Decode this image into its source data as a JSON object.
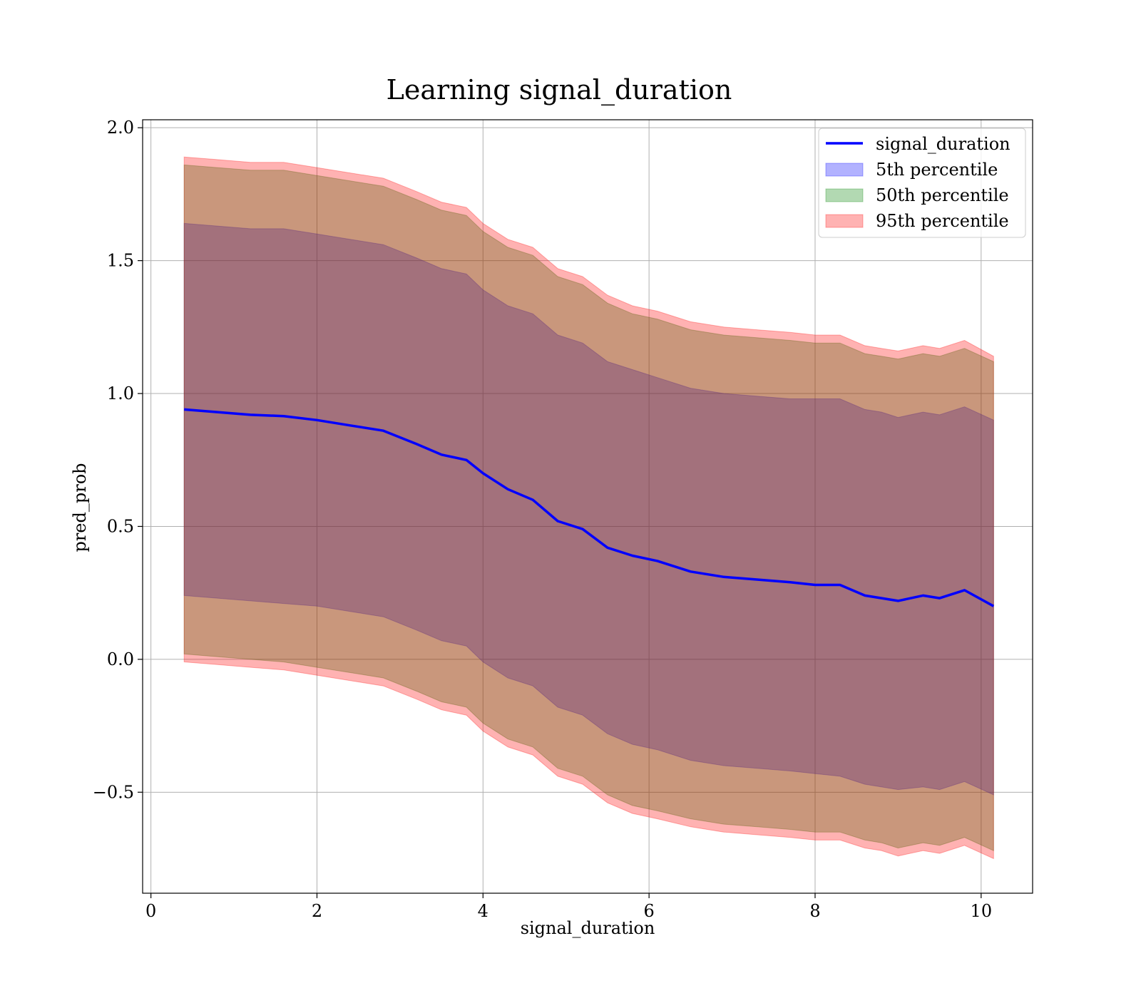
{
  "chart_data": {
    "type": "area",
    "title": "Learning signal_duration",
    "xlabel": "signal_duration",
    "ylabel": "pred_prob",
    "xlim": [
      -0.1,
      10.62
    ],
    "ylim": [
      -0.88,
      2.03
    ],
    "xticks": [
      0,
      2,
      4,
      6,
      8,
      10
    ],
    "yticks": [
      2.0,
      1.5,
      1.0,
      0.5,
      0.0,
      -0.5
    ],
    "ytick_labels": [
      "2.0",
      "1.5",
      "1.0",
      "0.5",
      "0.0",
      "−0.5"
    ],
    "grid": true,
    "legend_position": "top-right",
    "x": [
      0.4,
      0.8,
      1.2,
      1.6,
      2.0,
      2.4,
      2.8,
      3.2,
      3.5,
      3.8,
      4.0,
      4.3,
      4.6,
      4.9,
      5.2,
      5.5,
      5.8,
      6.1,
      6.5,
      6.9,
      7.3,
      7.7,
      8.0,
      8.3,
      8.6,
      8.8,
      9.0,
      9.3,
      9.5,
      9.8,
      10.15
    ],
    "series": [
      {
        "name": "signal_duration",
        "kind": "line",
        "color": "#0000ff",
        "values": [
          0.94,
          0.93,
          0.92,
          0.915,
          0.9,
          0.88,
          0.86,
          0.81,
          0.77,
          0.75,
          0.7,
          0.64,
          0.6,
          0.52,
          0.49,
          0.42,
          0.39,
          0.37,
          0.33,
          0.31,
          0.3,
          0.29,
          0.28,
          0.28,
          0.24,
          0.23,
          0.22,
          0.24,
          0.23,
          0.26,
          0.2
        ]
      },
      {
        "name": "5th percentile",
        "kind": "band",
        "color": "#0000ff",
        "lower": [
          0.24,
          0.23,
          0.22,
          0.21,
          0.2,
          0.18,
          0.16,
          0.11,
          0.07,
          0.05,
          -0.01,
          -0.07,
          -0.1,
          -0.18,
          -0.21,
          -0.28,
          -0.32,
          -0.34,
          -0.38,
          -0.4,
          -0.41,
          -0.42,
          -0.43,
          -0.44,
          -0.47,
          -0.48,
          -0.49,
          -0.48,
          -0.49,
          -0.46,
          -0.51
        ],
        "upper": [
          1.64,
          1.63,
          1.62,
          1.62,
          1.6,
          1.58,
          1.56,
          1.51,
          1.47,
          1.45,
          1.39,
          1.33,
          1.3,
          1.22,
          1.19,
          1.12,
          1.09,
          1.06,
          1.02,
          1.0,
          0.99,
          0.98,
          0.98,
          0.98,
          0.94,
          0.93,
          0.91,
          0.93,
          0.92,
          0.95,
          0.9
        ]
      },
      {
        "name": "50th percentile",
        "kind": "band",
        "color": "#008000",
        "lower": [
          0.02,
          0.01,
          0.0,
          -0.01,
          -0.03,
          -0.05,
          -0.07,
          -0.12,
          -0.16,
          -0.18,
          -0.24,
          -0.3,
          -0.33,
          -0.41,
          -0.44,
          -0.51,
          -0.55,
          -0.57,
          -0.6,
          -0.62,
          -0.63,
          -0.64,
          -0.65,
          -0.65,
          -0.68,
          -0.69,
          -0.71,
          -0.69,
          -0.7,
          -0.67,
          -0.72
        ],
        "upper": [
          1.86,
          1.85,
          1.84,
          1.84,
          1.82,
          1.8,
          1.78,
          1.73,
          1.69,
          1.67,
          1.61,
          1.55,
          1.52,
          1.44,
          1.41,
          1.34,
          1.3,
          1.28,
          1.24,
          1.22,
          1.21,
          1.2,
          1.19,
          1.19,
          1.15,
          1.14,
          1.13,
          1.15,
          1.14,
          1.17,
          1.12
        ]
      },
      {
        "name": "95th percentile",
        "kind": "band",
        "color": "#ff0000",
        "lower": [
          -0.01,
          -0.02,
          -0.03,
          -0.04,
          -0.06,
          -0.08,
          -0.1,
          -0.15,
          -0.19,
          -0.21,
          -0.27,
          -0.33,
          -0.36,
          -0.44,
          -0.47,
          -0.54,
          -0.58,
          -0.6,
          -0.63,
          -0.65,
          -0.66,
          -0.67,
          -0.68,
          -0.68,
          -0.71,
          -0.72,
          -0.74,
          -0.72,
          -0.73,
          -0.7,
          -0.75
        ],
        "upper": [
          1.89,
          1.88,
          1.87,
          1.87,
          1.85,
          1.83,
          1.81,
          1.76,
          1.72,
          1.7,
          1.64,
          1.58,
          1.55,
          1.47,
          1.44,
          1.37,
          1.33,
          1.31,
          1.27,
          1.25,
          1.24,
          1.23,
          1.22,
          1.22,
          1.18,
          1.17,
          1.16,
          1.18,
          1.17,
          1.2,
          1.14
        ]
      }
    ]
  }
}
